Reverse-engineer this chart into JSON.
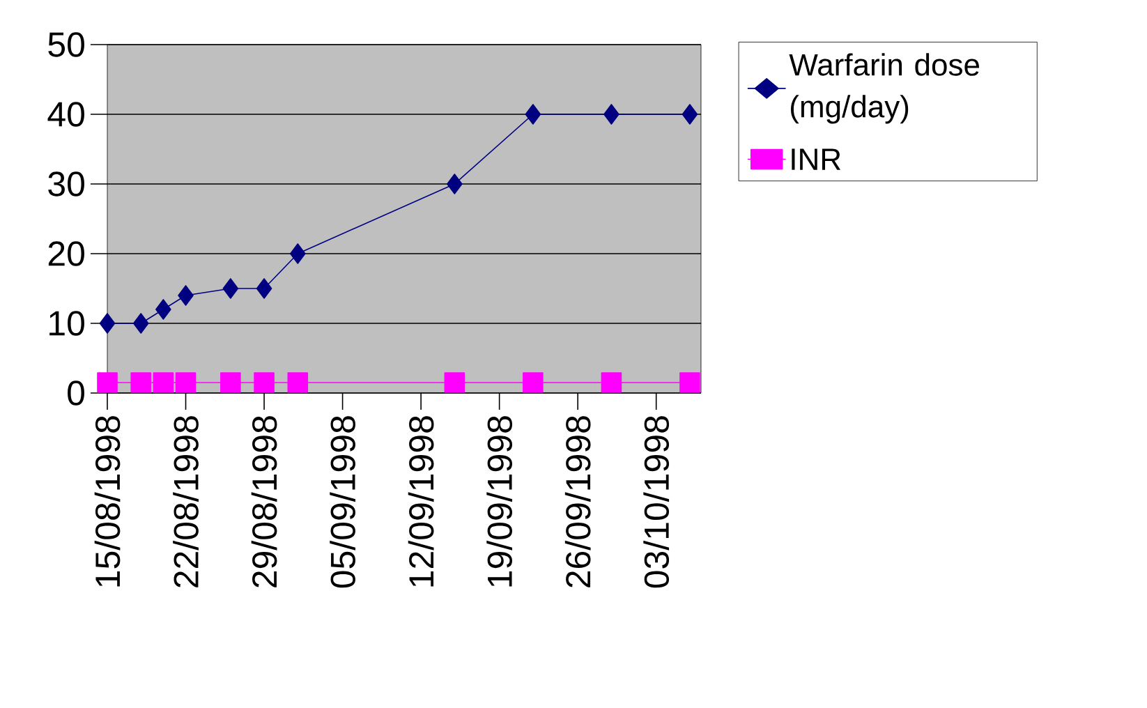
{
  "chart_data": {
    "type": "line",
    "x": [
      "1998-08-15",
      "1998-08-18",
      "1998-08-20",
      "1998-08-22",
      "1998-08-26",
      "1998-08-29",
      "1998-09-01",
      "1998-09-15",
      "1998-09-22",
      "1998-09-29",
      "1998-10-06"
    ],
    "series": [
      {
        "name": "Warfarin dose (mg/day)",
        "color": "#000080",
        "marker": "diamond",
        "values": [
          10,
          10,
          12,
          14,
          15,
          15,
          20,
          30,
          40,
          40,
          40
        ]
      },
      {
        "name": "INR",
        "color": "#ff00ff",
        "marker": "square",
        "values": [
          1.5,
          1.5,
          1.5,
          1.5,
          1.5,
          1.5,
          1.5,
          1.5,
          1.5,
          1.5,
          1.5
        ]
      }
    ],
    "xlim": [
      "1998-08-15",
      "1998-10-07"
    ],
    "xticks": [
      {
        "value": "1998-08-15",
        "label": "15/08/1998"
      },
      {
        "value": "1998-08-22",
        "label": "22/08/1998"
      },
      {
        "value": "1998-08-29",
        "label": "29/08/1998"
      },
      {
        "value": "1998-09-05",
        "label": "05/09/1998"
      },
      {
        "value": "1998-09-12",
        "label": "12/09/1998"
      },
      {
        "value": "1998-09-19",
        "label": "19/09/1998"
      },
      {
        "value": "1998-09-26",
        "label": "26/09/1998"
      },
      {
        "value": "1998-10-03",
        "label": "03/10/1998"
      }
    ],
    "ylim": [
      0,
      50
    ],
    "yticks": [
      0,
      10,
      20,
      30,
      40,
      50
    ],
    "grid": "y",
    "legend": "right",
    "line_style": "solid"
  }
}
